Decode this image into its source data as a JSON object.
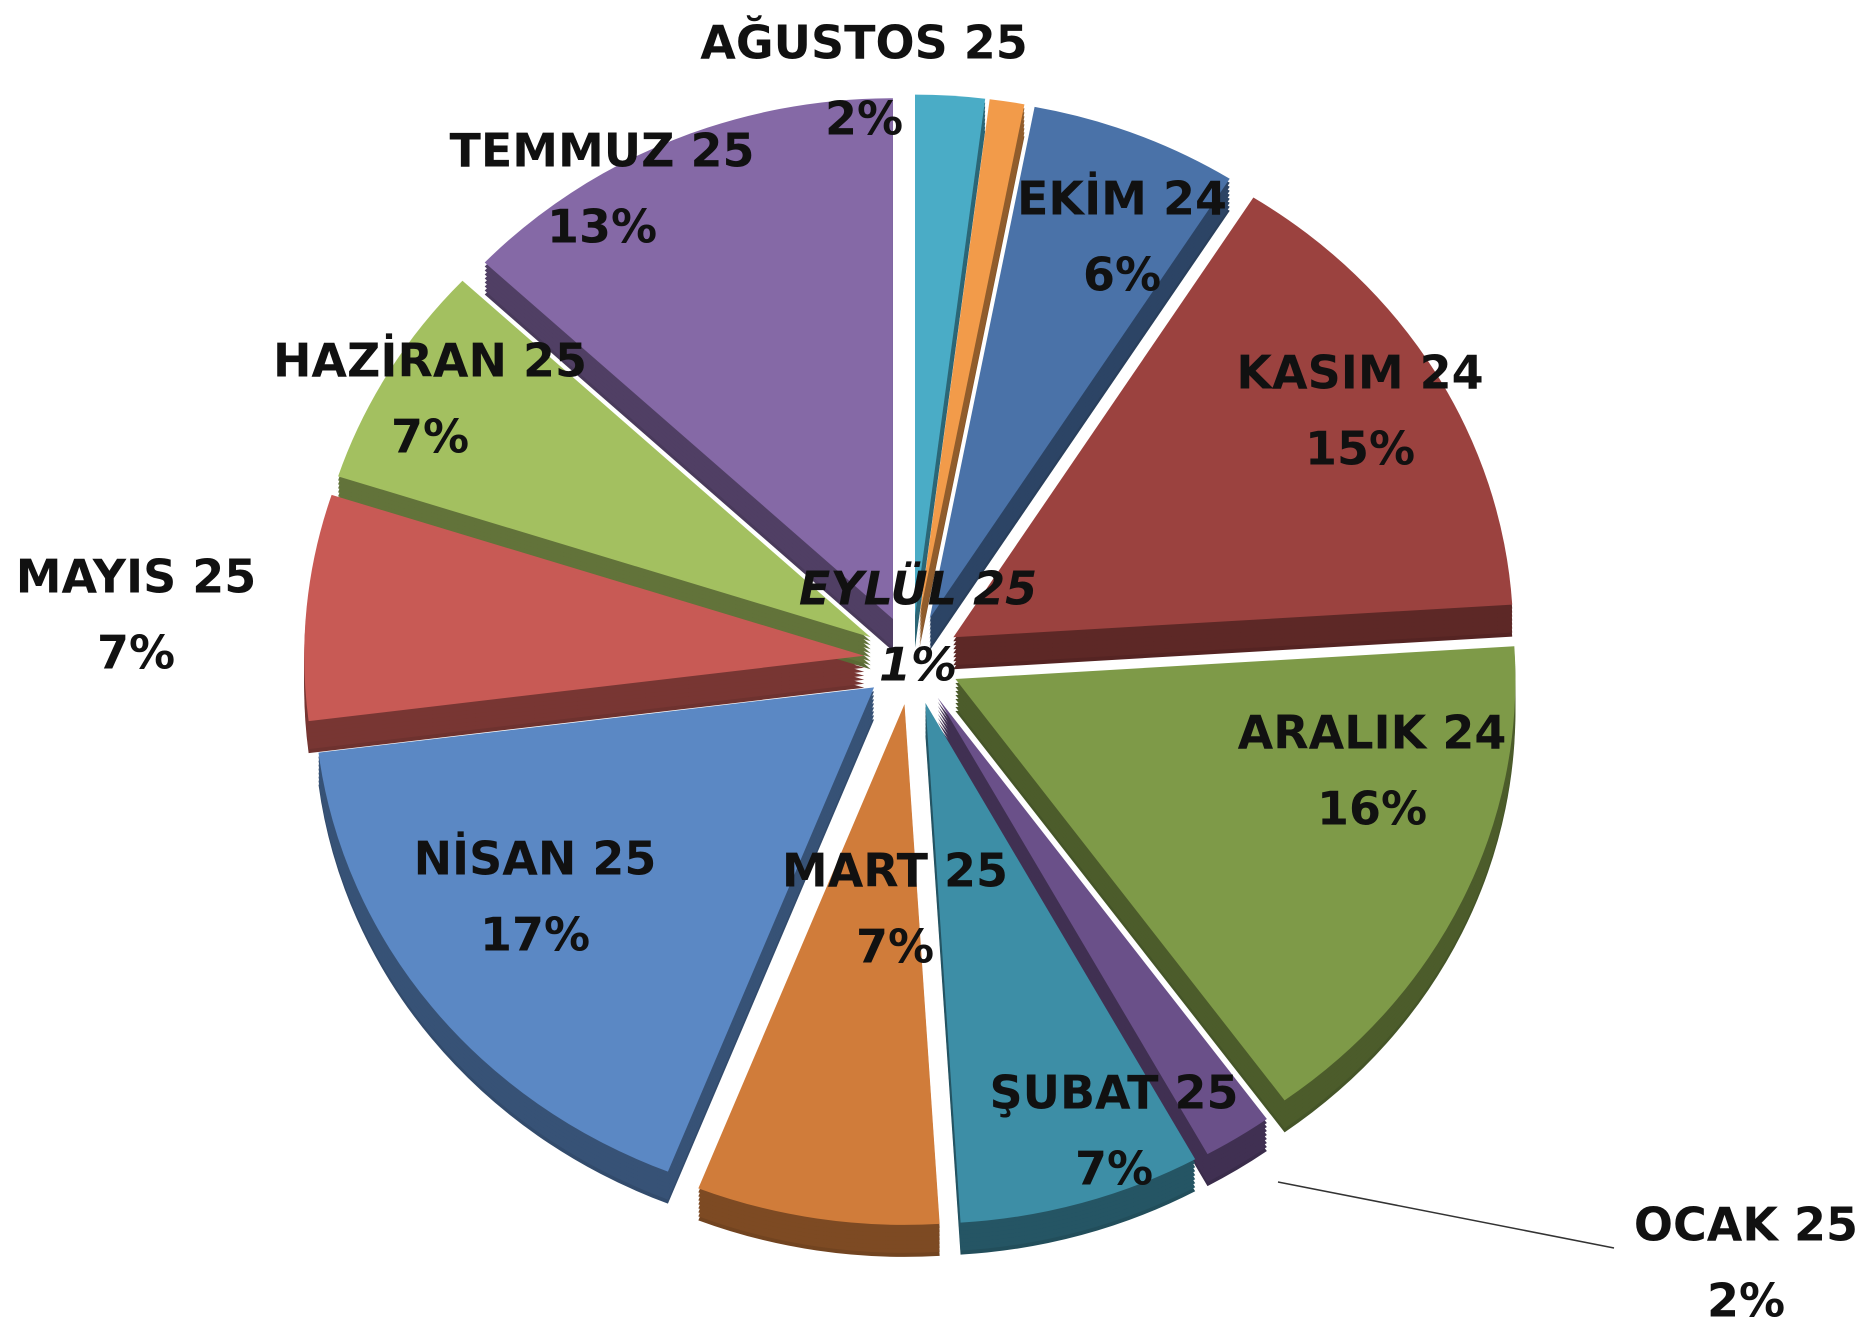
{
  "chart_data": {
    "type": "pie",
    "categories": [
      "EKİM 24",
      "KASIM 24",
      "ARALIK 24",
      "OCAK 25",
      "ŞUBAT 25",
      "MART 25",
      "NİSAN 25",
      "MAYIS 25",
      "HAZİRAN 25",
      "TEMMUZ 25",
      "AĞUSTOS 25",
      "EYLÜL 25"
    ],
    "values": [
      6,
      15,
      16,
      2,
      7,
      7,
      17,
      7,
      7,
      13,
      2,
      1
    ],
    "value_labels": [
      "6%",
      "15%",
      "16%",
      "2%",
      "7%",
      "7%",
      "17%",
      "7%",
      "7%",
      "13%",
      "2%",
      "1%"
    ],
    "colors": [
      "#4a72a8",
      "#9b423f",
      "#7e9a48",
      "#6a5089",
      "#3d8ea6",
      "#d07c3a",
      "#5b88c4",
      "#c85a55",
      "#a3c060",
      "#8569a6",
      "#4aacc6",
      "#f29b4a"
    ]
  }
}
